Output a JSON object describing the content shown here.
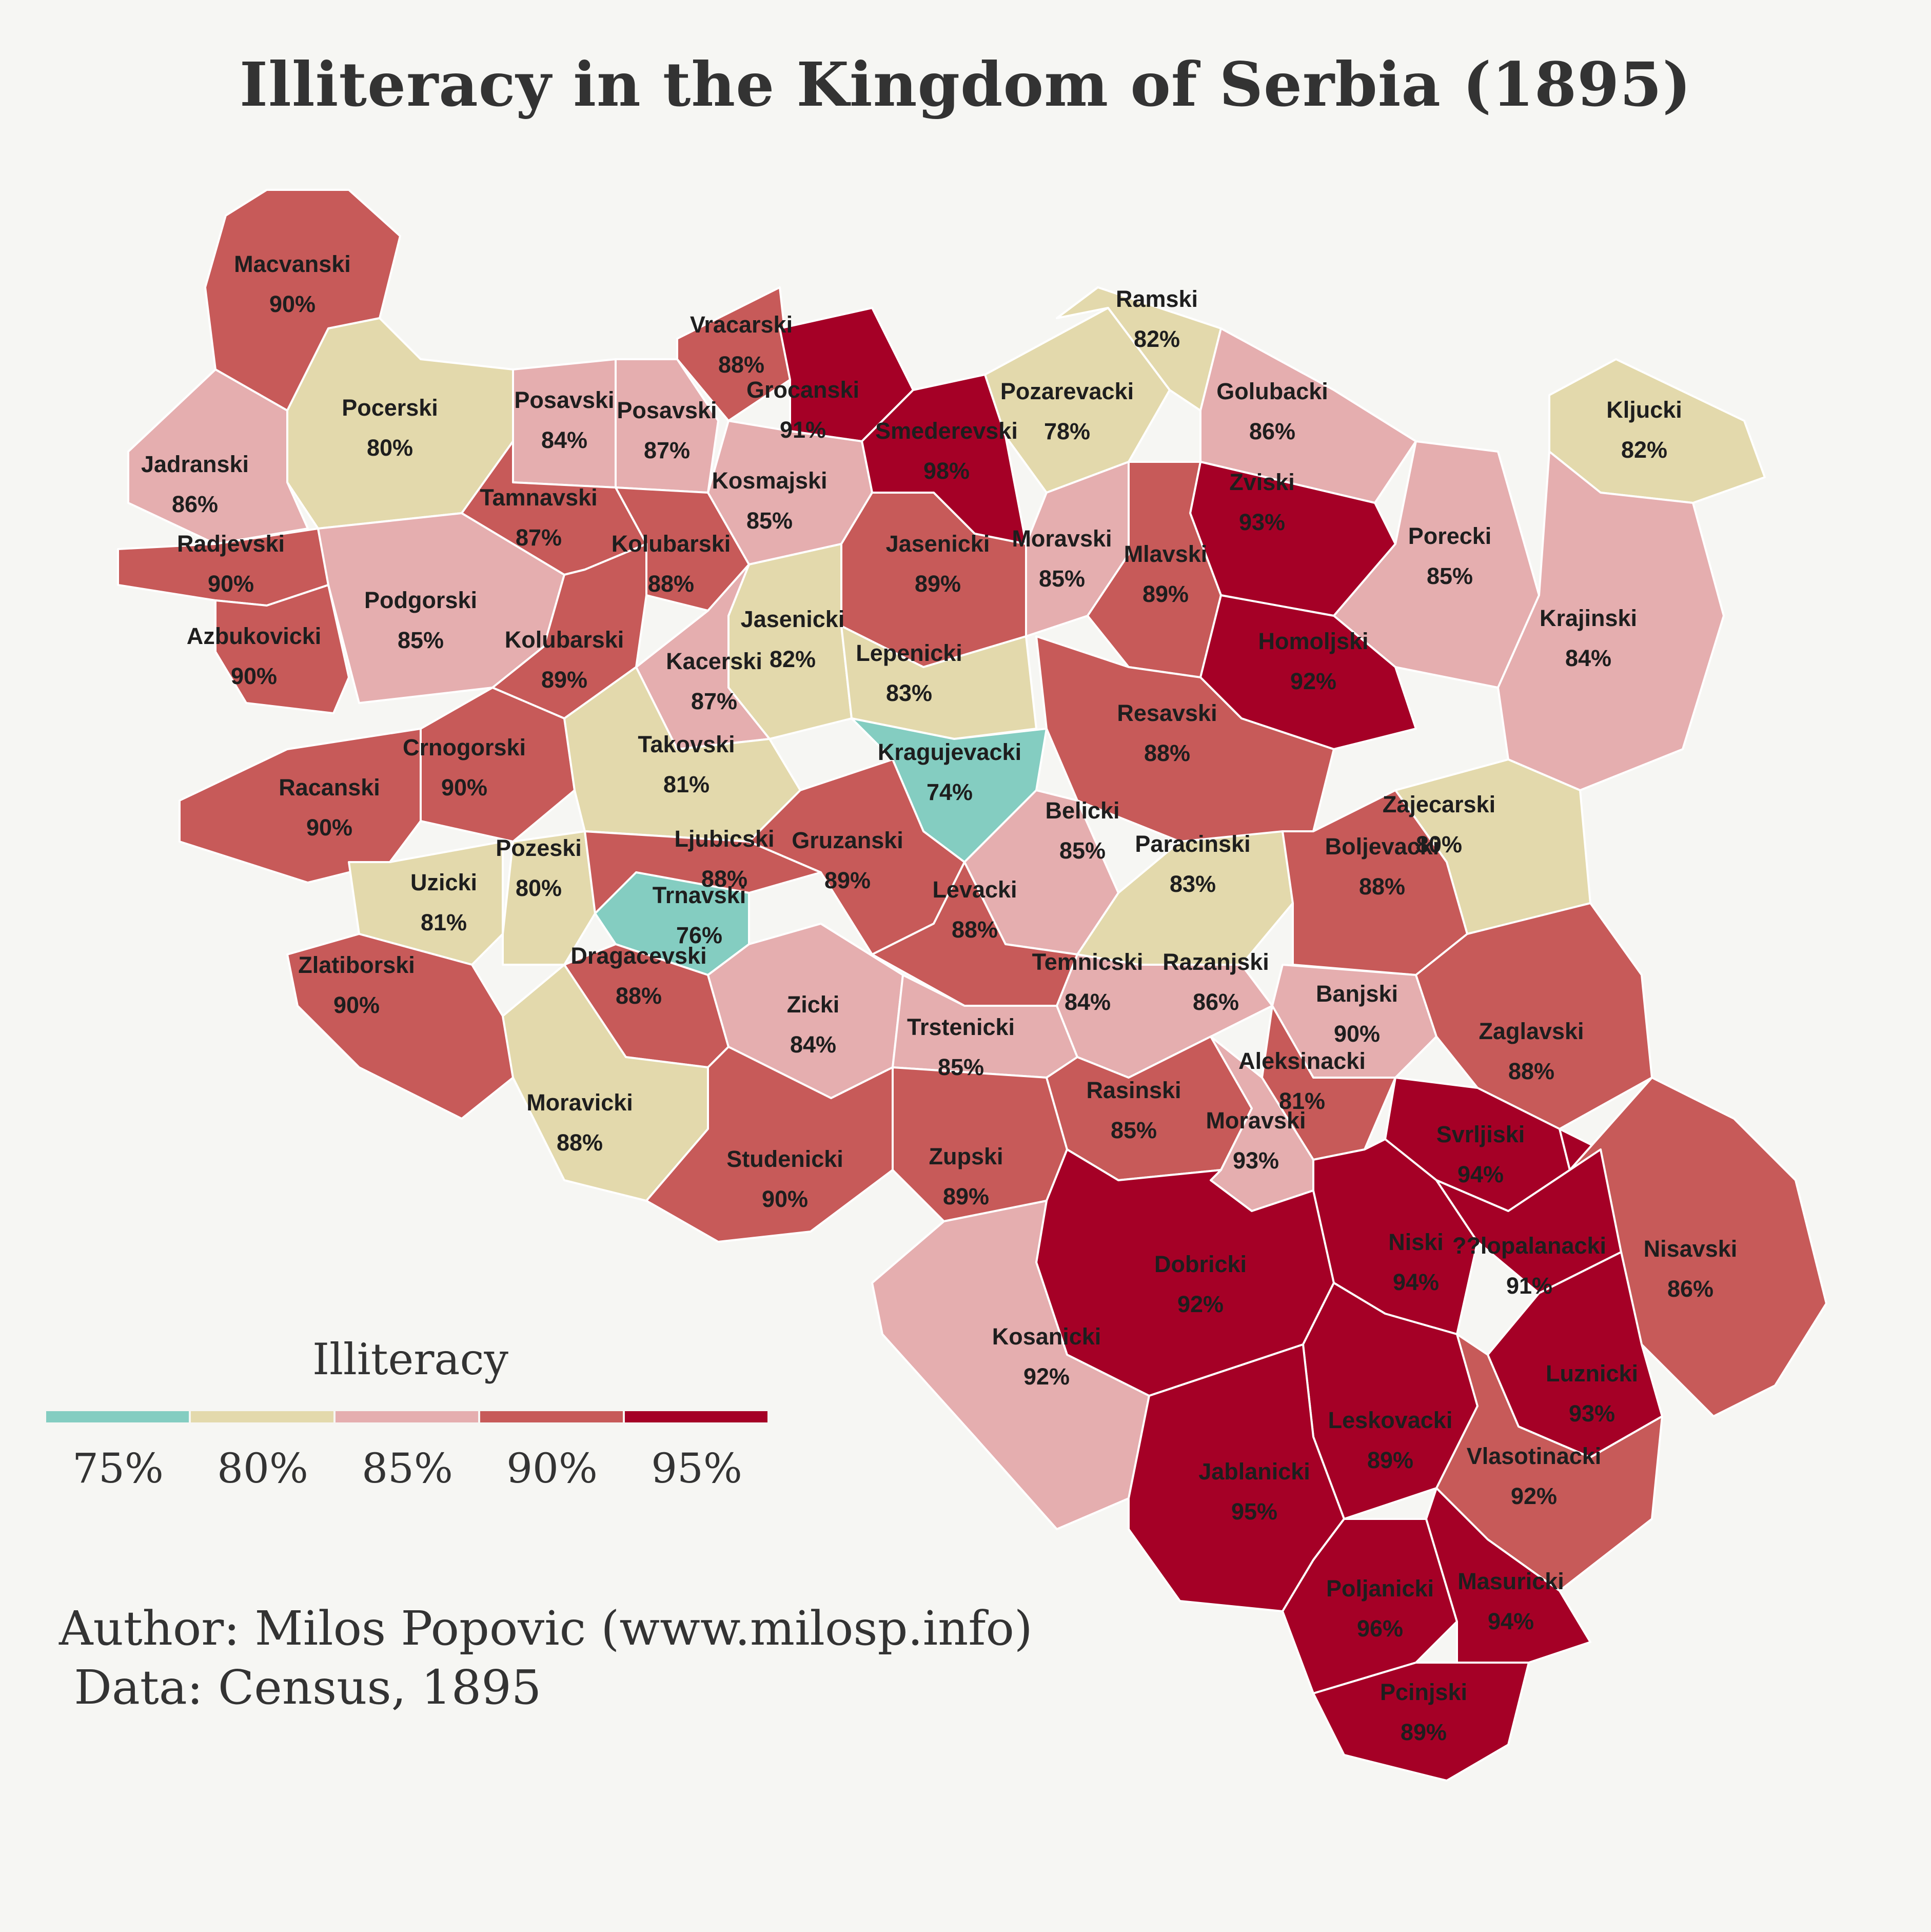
{
  "title": "Illiteracy in the Kingdom of Serbia (1895)",
  "legend": {
    "title": "Illiteracy",
    "colors": [
      "#84cdc1",
      "#e3d9ac",
      "#e5aeaf",
      "#c75a59",
      "#a50026"
    ],
    "ticks": [
      "75%",
      "80%",
      "85%",
      "90%",
      "95%"
    ]
  },
  "author": "Author: Milos Popovic (www.milosp.info)",
  "source": " Data: Census, 1895",
  "regions": [
    {
      "name": "Macvanski",
      "value": "90%",
      "color": "#c75a59"
    },
    {
      "name": "Pocerski",
      "value": "80%",
      "color": "#e3d9ac"
    },
    {
      "name": "Jadranski",
      "value": "86%",
      "color": "#e5aeaf"
    },
    {
      "name": "Radjevski",
      "value": "90%",
      "color": "#c75a59"
    },
    {
      "name": "Azbukovicki",
      "value": "90%",
      "color": "#c75a59"
    },
    {
      "name": "Podgorski",
      "value": "85%",
      "color": "#e5aeaf"
    },
    {
      "name": "Posavski",
      "value": "84%",
      "color": "#e5aeaf"
    },
    {
      "name": "Posavski",
      "value": "87%",
      "color": "#e5aeaf"
    },
    {
      "name": "Tamnavski",
      "value": "87%",
      "color": "#c75a59"
    },
    {
      "name": "Kolubarski",
      "value": "88%",
      "color": "#c75a59"
    },
    {
      "name": "Kolubarski",
      "value": "89%",
      "color": "#c75a59"
    },
    {
      "name": "Vracarski",
      "value": "88%",
      "color": "#c75a59"
    },
    {
      "name": "Grocanski",
      "value": "91%",
      "color": "#a50026"
    },
    {
      "name": "Smederevski",
      "value": "98%",
      "color": "#a50026"
    },
    {
      "name": "Kosmajski",
      "value": "85%",
      "color": "#e5aeaf"
    },
    {
      "name": "Pozarevacki",
      "value": "78%",
      "color": "#e3d9ac"
    },
    {
      "name": "Ramski",
      "value": "82%",
      "color": "#e3d9ac"
    },
    {
      "name": "Golubacki",
      "value": "86%",
      "color": "#e5aeaf"
    },
    {
      "name": "Zviski",
      "value": "93%",
      "color": "#a50026"
    },
    {
      "name": "Kljucki",
      "value": "82%",
      "color": "#e3d9ac"
    },
    {
      "name": "Porecki",
      "value": "85%",
      "color": "#e5aeaf"
    },
    {
      "name": "Krajinski",
      "value": "84%",
      "color": "#e5aeaf"
    },
    {
      "name": "Jasenicki",
      "value": "89%",
      "color": "#c75a59"
    },
    {
      "name": "Moravski",
      "value": "85%",
      "color": "#e5aeaf"
    },
    {
      "name": "Mlavski",
      "value": "89%",
      "color": "#c75a59"
    },
    {
      "name": "Homoljski",
      "value": "92%",
      "color": "#a50026"
    },
    {
      "name": "Jasenicki",
      "value": "82%",
      "color": "#e3d9ac"
    },
    {
      "name": "Lepenicki",
      "value": "83%",
      "color": "#e3d9ac"
    },
    {
      "name": "Kacerski",
      "value": "87%",
      "color": "#e5aeaf"
    },
    {
      "name": "Kragujevacki",
      "value": "74%",
      "color": "#84cdc1"
    },
    {
      "name": "Resavski",
      "value": "88%",
      "color": "#c75a59"
    },
    {
      "name": "Crnogorski",
      "value": "90%",
      "color": "#c75a59"
    },
    {
      "name": "Racanski",
      "value": "90%",
      "color": "#c75a59"
    },
    {
      "name": "Takovski",
      "value": "81%",
      "color": "#e3d9ac"
    },
    {
      "name": "Belicki",
      "value": "85%",
      "color": "#e5aeaf"
    },
    {
      "name": "Paracinski",
      "value": "83%",
      "color": "#e3d9ac"
    },
    {
      "name": "Zajecarski",
      "value": "80%",
      "color": "#e3d9ac"
    },
    {
      "name": "Boljevacki",
      "value": "88%",
      "color": "#c75a59"
    },
    {
      "name": "Uzicki",
      "value": "81%",
      "color": "#e3d9ac"
    },
    {
      "name": "Pozeski",
      "value": "80%",
      "color": "#e3d9ac"
    },
    {
      "name": "Ljubicski",
      "value": "88%",
      "color": "#c75a59"
    },
    {
      "name": "Trnavski",
      "value": "76%",
      "color": "#84cdc1"
    },
    {
      "name": "Gruzanski",
      "value": "89%",
      "color": "#c75a59"
    },
    {
      "name": "Levacki",
      "value": "88%",
      "color": "#c75a59"
    },
    {
      "name": "Zlatiborski",
      "value": "90%",
      "color": "#c75a59"
    },
    {
      "name": "Dragacevski",
      "value": "88%",
      "color": "#c75a59"
    },
    {
      "name": "Zicki",
      "value": "84%",
      "color": "#e5aeaf"
    },
    {
      "name": "Trstenicki",
      "value": "85%",
      "color": "#e5aeaf"
    },
    {
      "name": "Temnicski",
      "value": "84%",
      "color": "#e5aeaf"
    },
    {
      "name": "Razanjski",
      "value": "86%",
      "color": "#e5aeaf"
    },
    {
      "name": "Banjski",
      "value": "90%",
      "color": "#c75a59"
    },
    {
      "name": "Zaglavski",
      "value": "88%",
      "color": "#c75a59"
    },
    {
      "name": "Aleksinacki",
      "value": "81%",
      "color": "#e3d9ac"
    },
    {
      "name": "Moravicki",
      "value": "88%",
      "color": "#c75a59"
    },
    {
      "name": "Studenicki",
      "value": "90%",
      "color": "#c75a59"
    },
    {
      "name": "Zupski",
      "value": "89%",
      "color": "#c75a59"
    },
    {
      "name": "Rasinski",
      "value": "85%",
      "color": "#e5aeaf"
    },
    {
      "name": "Moravski",
      "value": "93%",
      "color": "#a50026"
    },
    {
      "name": "Svrljiski",
      "value": "94%",
      "color": "#a50026"
    },
    {
      "name": "Dobricki",
      "value": "92%",
      "color": "#a50026"
    },
    {
      "name": "Niski",
      "value": "94%",
      "color": "#a50026"
    },
    {
      "name": "??lopalanacki",
      "value": "91%",
      "color": "#c75a59"
    },
    {
      "name": "Nisavski",
      "value": "86%",
      "color": "#e5aeaf"
    },
    {
      "name": "Kosanicki",
      "value": "92%",
      "color": "#a50026"
    },
    {
      "name": "Luznicki",
      "value": "93%",
      "color": "#a50026"
    },
    {
      "name": "Leskovacki",
      "value": "89%",
      "color": "#c75a59"
    },
    {
      "name": "Vlasotinacki",
      "value": "92%",
      "color": "#a50026"
    },
    {
      "name": "Jablanicki",
      "value": "95%",
      "color": "#a50026"
    },
    {
      "name": "Poljanicki",
      "value": "96%",
      "color": "#a50026"
    },
    {
      "name": "Masuricki",
      "value": "94%",
      "color": "#a50026"
    },
    {
      "name": "Pcinjski",
      "value": "89%",
      "color": "#c75a59"
    }
  ]
}
